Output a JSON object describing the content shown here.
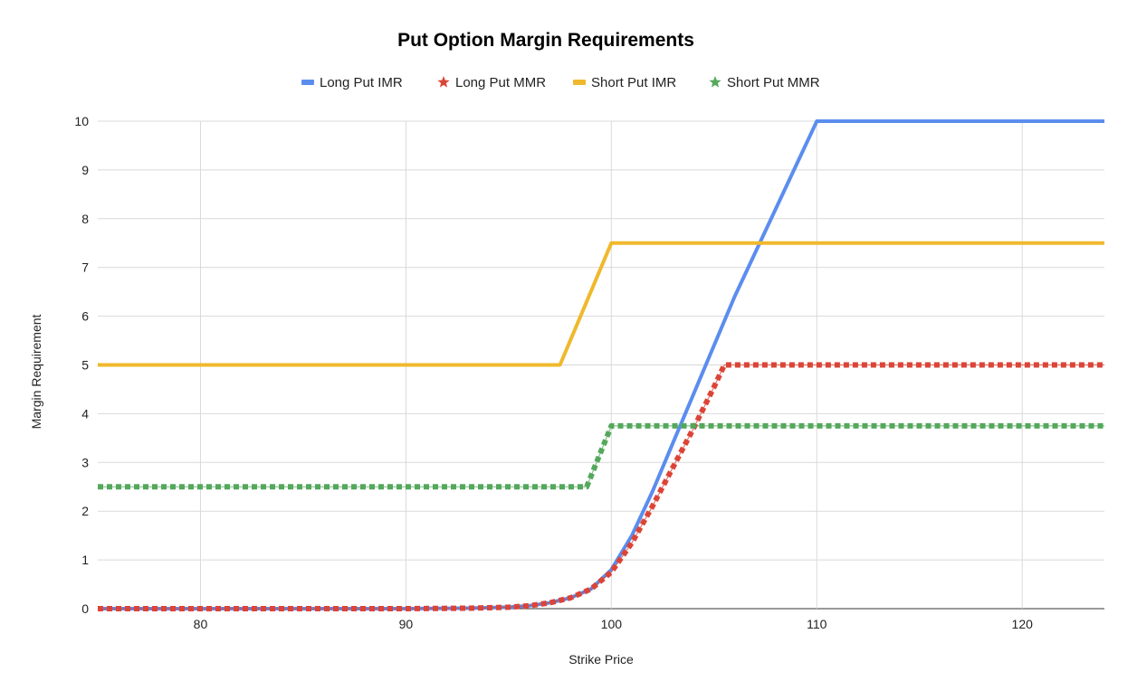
{
  "chart_data": {
    "type": "line",
    "title": "Put Option Margin Requirements",
    "xlabel": "Strike Price",
    "ylabel": "Margin Requirement",
    "xlim": [
      75,
      124
    ],
    "ylim": [
      0,
      10
    ],
    "x_ticks": [
      80,
      90,
      100,
      110,
      120
    ],
    "y_ticks": [
      0,
      1,
      2,
      3,
      4,
      5,
      6,
      7,
      8,
      9,
      10
    ],
    "grid": true,
    "legend_position": "top",
    "series": [
      {
        "name": "Long Put IMR",
        "color": "#5b8def",
        "style": "solid",
        "points": [
          [
            75,
            0
          ],
          [
            90,
            0
          ],
          [
            93,
            0.01
          ],
          [
            95,
            0.03
          ],
          [
            96,
            0.06
          ],
          [
            97,
            0.12
          ],
          [
            98,
            0.22
          ],
          [
            99,
            0.4
          ],
          [
            100,
            0.8
          ],
          [
            101,
            1.5
          ],
          [
            102,
            2.4
          ],
          [
            103,
            3.4
          ],
          [
            104,
            4.4
          ],
          [
            105,
            5.4
          ],
          [
            106,
            6.4
          ],
          [
            107,
            7.3
          ],
          [
            108,
            8.2
          ],
          [
            109,
            9.1
          ],
          [
            110,
            10
          ],
          [
            124,
            10
          ]
        ]
      },
      {
        "name": "Long Put MMR",
        "color": "#db4437",
        "style": "dotted",
        "points": [
          [
            75,
            0
          ],
          [
            90,
            0
          ],
          [
            93,
            0.01
          ],
          [
            95,
            0.03
          ],
          [
            96,
            0.06
          ],
          [
            97,
            0.12
          ],
          [
            98,
            0.22
          ],
          [
            99,
            0.4
          ],
          [
            100,
            0.75
          ],
          [
            101,
            1.35
          ],
          [
            102,
            2.1
          ],
          [
            103,
            2.9
          ],
          [
            104,
            3.7
          ],
          [
            105,
            4.55
          ],
          [
            105.5,
            5
          ],
          [
            124,
            5
          ]
        ]
      },
      {
        "name": "Short Put IMR",
        "color": "#f0b82c",
        "style": "solid",
        "points": [
          [
            75,
            5
          ],
          [
            97.5,
            5
          ],
          [
            100,
            7.5
          ],
          [
            124,
            7.5
          ]
        ]
      },
      {
        "name": "Short Put MMR",
        "color": "#54a85c",
        "style": "dotted",
        "points": [
          [
            75,
            2.5
          ],
          [
            98.8,
            2.5
          ],
          [
            100,
            3.75
          ],
          [
            124,
            3.75
          ]
        ]
      }
    ]
  }
}
